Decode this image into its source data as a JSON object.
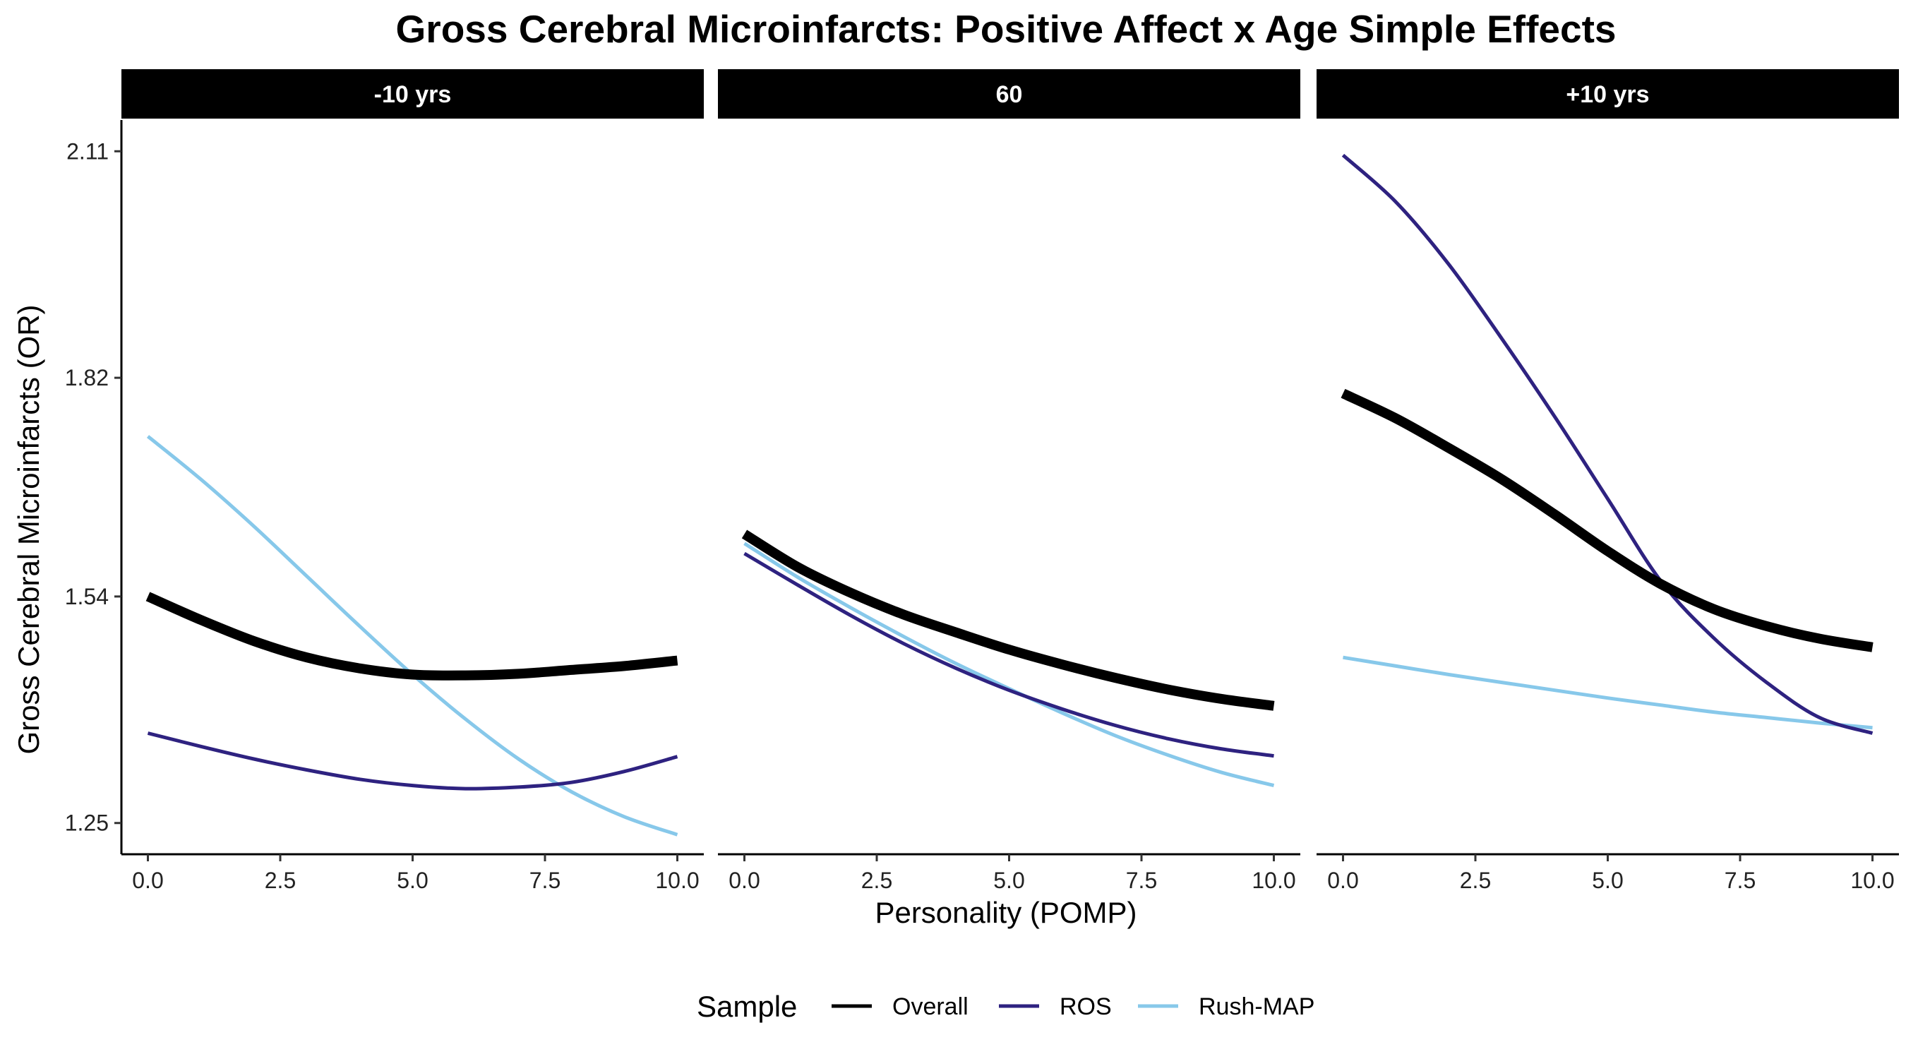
{
  "chart_data": {
    "type": "line",
    "title": "Gross Cerebral Microinfarcts: Positive Affect x Age Simple Effects",
    "xlabel": "Personality (POMP)",
    "ylabel": "Gross Cerebral Microinfarcts (OR)",
    "xlim": [
      -0.5,
      10.5
    ],
    "ylim": [
      1.21,
      2.15
    ],
    "x_ticks": [
      0,
      2.5,
      5,
      7.5,
      10
    ],
    "x_tick_labels": [
      "0.0",
      "2.5",
      "5.0",
      "7.5",
      "10.0"
    ],
    "y_ticks": [
      1.25,
      1.54,
      1.82,
      2.11
    ],
    "y_tick_labels": [
      "1.25",
      "1.54",
      "1.82",
      "2.11"
    ],
    "grid": false,
    "legend": {
      "title": "Sample",
      "position": "bottom",
      "entries": [
        "Overall",
        "ROS",
        "Rush-MAP"
      ]
    },
    "colors": {
      "Overall": "#000000",
      "ROS": "#2e2280",
      "Rush-MAP": "#87c8ea"
    },
    "facets": [
      {
        "label": "-10 yrs",
        "series": [
          {
            "name": "Overall",
            "x": [
              0,
              1,
              2,
              3,
              4,
              5,
              6,
              7,
              8,
              9,
              10
            ],
            "y": [
              1.54,
              1.51,
              1.483,
              1.462,
              1.448,
              1.44,
              1.439,
              1.441,
              1.446,
              1.451,
              1.458
            ]
          },
          {
            "name": "ROS",
            "x": [
              0,
              1,
              2,
              3,
              4,
              5,
              6,
              7,
              8,
              9,
              10
            ],
            "y": [
              1.365,
              1.348,
              1.332,
              1.318,
              1.306,
              1.298,
              1.294,
              1.296,
              1.302,
              1.316,
              1.335
            ]
          },
          {
            "name": "Rush-MAP",
            "x": [
              0,
              1,
              2,
              3,
              4,
              5,
              6,
              7,
              8,
              9,
              10
            ],
            "y": [
              1.745,
              1.69,
              1.63,
              1.566,
              1.502,
              1.44,
              1.383,
              1.332,
              1.29,
              1.258,
              1.235
            ]
          }
        ]
      },
      {
        "label": "60",
        "series": [
          {
            "name": "Overall",
            "x": [
              0,
              1,
              2,
              3,
              4,
              5,
              6,
              7,
              8,
              9,
              10
            ],
            "y": [
              1.62,
              1.578,
              1.545,
              1.517,
              1.494,
              1.472,
              1.453,
              1.436,
              1.421,
              1.409,
              1.4
            ]
          },
          {
            "name": "ROS",
            "x": [
              0,
              1,
              2,
              3,
              4,
              5,
              6,
              7,
              8,
              9,
              10
            ],
            "y": [
              1.595,
              1.555,
              1.516,
              1.48,
              1.448,
              1.42,
              1.396,
              1.375,
              1.358,
              1.345,
              1.336
            ]
          },
          {
            "name": "Rush-MAP",
            "x": [
              0,
              1,
              2,
              3,
              4,
              5,
              6,
              7,
              8,
              9,
              10
            ],
            "y": [
              1.608,
              1.565,
              1.526,
              1.489,
              1.454,
              1.422,
              1.391,
              1.362,
              1.337,
              1.315,
              1.298
            ]
          }
        ]
      },
      {
        "label": "+10 yrs",
        "series": [
          {
            "name": "Overall",
            "x": [
              0,
              1,
              2,
              3,
              4,
              5,
              6,
              7,
              8,
              9,
              10
            ],
            "y": [
              1.8,
              1.768,
              1.73,
              1.69,
              1.645,
              1.598,
              1.556,
              1.524,
              1.502,
              1.486,
              1.475
            ]
          },
          {
            "name": "ROS",
            "x": [
              0,
              1,
              2,
              3,
              4,
              5,
              6,
              7,
              8,
              9,
              10
            ],
            "y": [
              2.105,
              2.045,
              1.965,
              1.87,
              1.77,
              1.665,
              1.56,
              1.487,
              1.43,
              1.385,
              1.365
            ]
          },
          {
            "name": "Rush-MAP",
            "x": [
              0,
              1,
              2,
              3,
              4,
              5,
              6,
              7,
              8,
              9,
              10
            ],
            "y": [
              1.462,
              1.451,
              1.44,
              1.43,
              1.42,
              1.41,
              1.401,
              1.392,
              1.385,
              1.378,
              1.372
            ]
          }
        ]
      }
    ]
  }
}
